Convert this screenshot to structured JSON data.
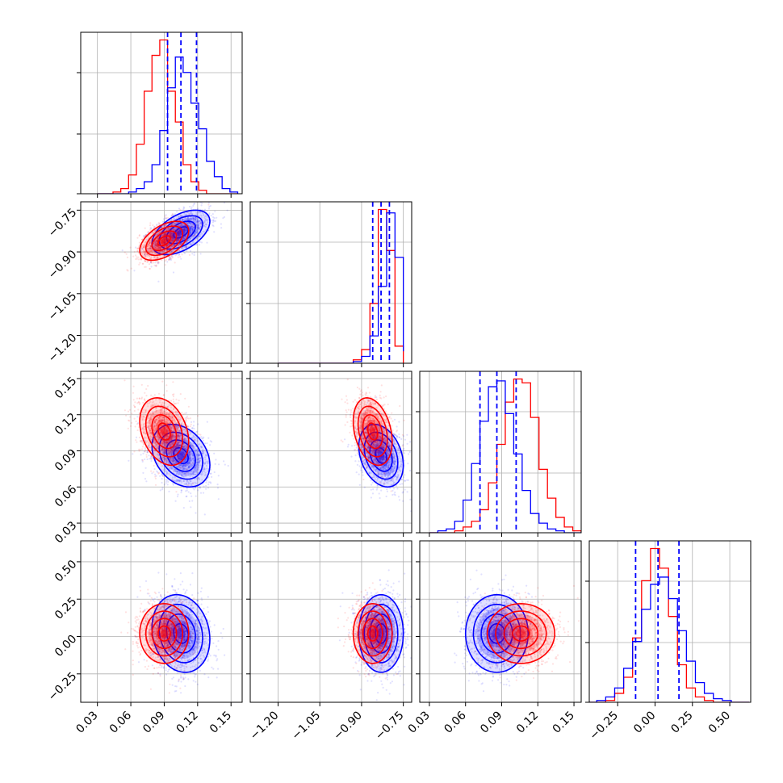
{
  "chart_data": {
    "type": "corner",
    "colors": {
      "series_a": "#0000ff",
      "series_b": "#ff0000",
      "grid": "#b0b0b0"
    },
    "grid": true,
    "variables": [
      {
        "range": [
          0.015,
          0.16
        ],
        "ticks": [
          0.03,
          0.06,
          0.09,
          0.12,
          0.15
        ],
        "tick_labels": [
          "0.03",
          "0.06",
          "0.09",
          "0.12",
          "0.15"
        ]
      },
      {
        "range": [
          -1.3,
          -0.72
        ],
        "ticks": [
          -1.2,
          -1.05,
          -0.9,
          -0.75
        ],
        "tick_labels": [
          "−1.20",
          "−1.05",
          "−0.90",
          "−0.75"
        ]
      },
      {
        "range": [
          0.022,
          0.156
        ],
        "ticks": [
          0.03,
          0.06,
          0.09,
          0.12,
          0.15
        ],
        "tick_labels": [
          "0.03",
          "0.06",
          "0.09",
          "0.12",
          "0.15"
        ]
      },
      {
        "range": [
          -0.44,
          0.64
        ],
        "ticks": [
          -0.25,
          0.0,
          0.25,
          0.5
        ],
        "tick_labels": [
          "−0.25",
          "0.00",
          "0.25",
          "0.50"
        ]
      }
    ],
    "diagonal": [
      {
        "series_a": {
          "bins": [
            0.03,
            0.037,
            0.044,
            0.051,
            0.058,
            0.065,
            0.072,
            0.079,
            0.086,
            0.093,
            0.1,
            0.107,
            0.114,
            0.121,
            0.128,
            0.135,
            0.142,
            0.149,
            0.156
          ],
          "counts": [
            0,
            0,
            0,
            0,
            1,
            3,
            7,
            17,
            37,
            62,
            80,
            71,
            53,
            38,
            19,
            10,
            3,
            1
          ]
        },
        "series_b": {
          "bins": [
            0.03,
            0.037,
            0.044,
            0.051,
            0.058,
            0.065,
            0.072,
            0.079,
            0.086,
            0.093,
            0.1,
            0.107,
            0.114,
            0.121,
            0.128,
            0.135,
            0.142,
            0.149,
            0.156
          ],
          "counts": [
            0,
            0,
            1,
            3,
            11,
            29,
            60,
            81,
            90,
            60,
            42,
            17,
            7,
            2,
            0,
            0,
            0,
            0
          ]
        },
        "quantiles": [
          0.093,
          0.105,
          0.119
        ]
      },
      {
        "series_a": {
          "bins": [
            -1.2,
            -1.17,
            -1.14,
            -1.11,
            -1.08,
            -1.05,
            -1.02,
            -0.99,
            -0.96,
            -0.93,
            -0.9,
            -0.87,
            -0.84,
            -0.81,
            -0.78,
            -0.75
          ],
          "counts": [
            0,
            0,
            0,
            0,
            0,
            0,
            0,
            0,
            0,
            1,
            4,
            16,
            45,
            88,
            62,
            7
          ]
        },
        "series_b": {
          "bins": [
            -1.2,
            -1.17,
            -1.14,
            -1.11,
            -1.08,
            -1.05,
            -1.02,
            -0.99,
            -0.96,
            -0.93,
            -0.9,
            -0.87,
            -0.84,
            -0.81,
            -0.78,
            -0.75
          ],
          "counts": [
            0,
            0,
            0,
            0,
            0,
            0,
            0,
            0,
            0,
            2,
            8,
            35,
            90,
            66,
            10,
            0
          ]
        },
        "quantiles": [
          -0.86,
          -0.83,
          -0.8
        ]
      },
      {
        "series_a": {
          "bins": [
            0.03,
            0.037,
            0.044,
            0.051,
            0.058,
            0.065,
            0.072,
            0.079,
            0.086,
            0.093,
            0.1,
            0.107,
            0.114,
            0.121,
            0.128,
            0.135,
            0.142,
            0.149,
            0.156
          ],
          "counts": [
            0,
            1,
            2,
            6,
            17,
            36,
            58,
            76,
            79,
            62,
            41,
            22,
            10,
            5,
            2,
            1,
            0,
            0
          ]
        },
        "series_b": {
          "bins": [
            0.03,
            0.037,
            0.044,
            0.051,
            0.058,
            0.065,
            0.072,
            0.079,
            0.086,
            0.093,
            0.1,
            0.107,
            0.114,
            0.121,
            0.128,
            0.135,
            0.142,
            0.149,
            0.156
          ],
          "counts": [
            0,
            0,
            0,
            1,
            3,
            6,
            12,
            26,
            46,
            68,
            80,
            78,
            60,
            33,
            18,
            8,
            3,
            1
          ]
        },
        "quantiles": [
          0.072,
          0.086,
          0.102
        ]
      },
      {
        "series_a": {
          "bins": [
            -0.45,
            -0.39,
            -0.33,
            -0.27,
            -0.21,
            -0.15,
            -0.09,
            -0.03,
            0.03,
            0.09,
            0.15,
            0.21,
            0.27,
            0.33,
            0.39,
            0.45,
            0.51,
            0.57,
            0.63
          ],
          "counts": [
            0,
            1,
            3,
            8,
            19,
            34,
            52,
            66,
            70,
            58,
            40,
            23,
            11,
            5,
            2,
            1,
            0,
            0
          ]
        },
        "series_b": {
          "bins": [
            -0.45,
            -0.39,
            -0.33,
            -0.27,
            -0.21,
            -0.15,
            -0.09,
            -0.03,
            0.03,
            0.09,
            0.15,
            0.21,
            0.27,
            0.33,
            0.39,
            0.45,
            0.51,
            0.57,
            0.63
          ],
          "counts": [
            0,
            0,
            1,
            5,
            14,
            36,
            68,
            86,
            75,
            48,
            21,
            8,
            3,
            1,
            0,
            0,
            0,
            0
          ]
        },
        "quantiles": [
          -0.13,
          0.02,
          0.16
        ]
      }
    ],
    "pairs": [
      {
        "row": 1,
        "col": 0,
        "series_a": {
          "mean": [
            0.105,
            -0.83
          ],
          "sd": [
            0.013,
            0.04
          ],
          "rho": 0.5
        },
        "series_b": {
          "mean": [
            0.09,
            -0.86
          ],
          "sd": [
            0.011,
            0.035
          ],
          "rho": 0.5
        }
      },
      {
        "row": 2,
        "col": 0,
        "series_a": {
          "mean": [
            0.105,
            0.086
          ],
          "sd": [
            0.013,
            0.013
          ],
          "rho": -0.3
        },
        "series_b": {
          "mean": [
            0.09,
            0.106
          ],
          "sd": [
            0.011,
            0.014
          ],
          "rho": -0.3
        }
      },
      {
        "row": 2,
        "col": 1,
        "series_a": {
          "mean": [
            -0.83,
            0.086
          ],
          "sd": [
            0.04,
            0.013
          ],
          "rho": -0.3
        },
        "series_b": {
          "mean": [
            -0.86,
            0.106
          ],
          "sd": [
            0.035,
            0.014
          ],
          "rho": -0.3
        }
      },
      {
        "row": 3,
        "col": 0,
        "series_a": {
          "mean": [
            0.105,
            0.02
          ],
          "sd": [
            0.013,
            0.13
          ],
          "rho": -0.15
        },
        "series_b": {
          "mean": [
            0.09,
            0.02
          ],
          "sd": [
            0.011,
            0.1
          ],
          "rho": 0.0
        }
      },
      {
        "row": 3,
        "col": 1,
        "series_a": {
          "mean": [
            -0.83,
            0.02
          ],
          "sd": [
            0.04,
            0.13
          ],
          "rho": 0.0
        },
        "series_b": {
          "mean": [
            -0.86,
            0.02
          ],
          "sd": [
            0.035,
            0.1
          ],
          "rho": 0.0
        }
      },
      {
        "row": 3,
        "col": 2,
        "series_a": {
          "mean": [
            0.086,
            0.02
          ],
          "sd": [
            0.013,
            0.13
          ],
          "rho": 0.0
        },
        "series_b": {
          "mean": [
            0.106,
            0.02
          ],
          "sd": [
            0.014,
            0.1
          ],
          "rho": 0.0
        }
      }
    ]
  }
}
